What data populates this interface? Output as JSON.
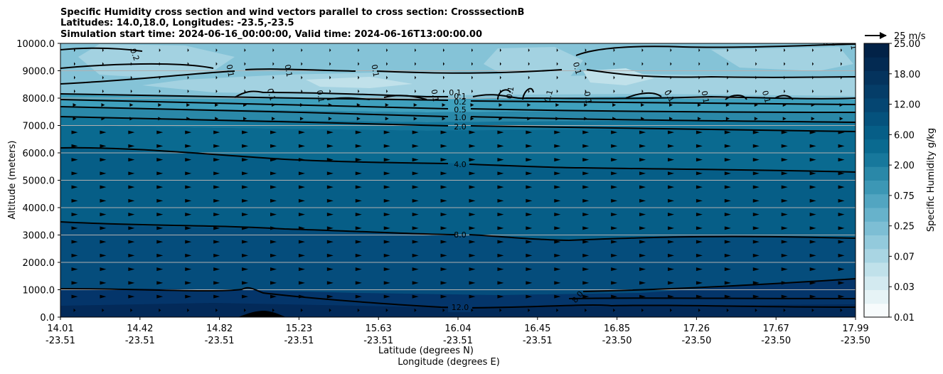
{
  "chart_data": {
    "type": "contour",
    "title_lines": [
      "Specific Humidity cross section and wind vectors parallel to cross section: CrosssectionB",
      "Latitudes: 14.0,18.0, Longitudes: -23.5,-23.5",
      "Simulation start time: 2024-06-16_00:00:00, Valid time: 2024-06-16T13:00:00.00"
    ],
    "ylabel": "Altitude (meters)",
    "xlabel_lat": "Latitude (degrees N)",
    "xlabel_lon": "Longitude (degrees E)",
    "ylim": [
      0,
      10000
    ],
    "y_ticks": [
      "0.0",
      "1000.0",
      "2000.0",
      "3000.0",
      "4000.0",
      "5000.0",
      "6000.0",
      "7000.0",
      "8000.0",
      "9000.0",
      "10000.0"
    ],
    "x_ticks": [
      {
        "lat": "14.01",
        "lon": "-23.51"
      },
      {
        "lat": "14.42",
        "lon": "-23.51"
      },
      {
        "lat": "14.82",
        "lon": "-23.51"
      },
      {
        "lat": "15.23",
        "lon": "-23.51"
      },
      {
        "lat": "15.63",
        "lon": "-23.51"
      },
      {
        "lat": "16.04",
        "lon": "-23.51"
      },
      {
        "lat": "16.45",
        "lon": "-23.51"
      },
      {
        "lat": "16.85",
        "lon": "-23.50"
      },
      {
        "lat": "17.26",
        "lon": "-23.50"
      },
      {
        "lat": "17.67",
        "lon": "-23.50"
      },
      {
        "lat": "17.99",
        "lon": "-23.50"
      }
    ],
    "colorbar": {
      "label": "Specific Humidity g/kg",
      "tick_labels": [
        "0.01",
        "0.03",
        "0.07",
        "0.25",
        "0.75",
        "2.00",
        "6.00",
        "12.00",
        "18.00",
        "25.00"
      ],
      "colors": [
        "#f7fbfc",
        "#e6f3f6",
        "#d3eaf0",
        "#c0e1ea",
        "#a9d5e3",
        "#93cadc",
        "#7dbed4",
        "#67b2cb",
        "#52a5c1",
        "#3c97b5",
        "#2a88a8",
        "#17789c",
        "#0a6a90",
        "#065e87",
        "#05527d",
        "#054672",
        "#053d68",
        "#04335d",
        "#032a52",
        "#022247"
      ]
    },
    "contour_levels": [
      {
        "label": "12.0",
        "altitude": 350
      },
      {
        "label": "8.0",
        "altitude": 3000
      },
      {
        "label": "4.0",
        "altitude": 5600
      },
      {
        "label": "2.0",
        "altitude": 7000
      },
      {
        "label": "1.0",
        "altitude": 7300
      },
      {
        "label": "0.5",
        "altitude": 7500
      },
      {
        "label": "0.2",
        "altitude": 7800
      },
      {
        "label": "0.1",
        "altitude": 8050
      }
    ],
    "upper_contour_labels": [
      "0.2",
      "0.1",
      "0.1",
      "0.1",
      "0.1",
      "0.1",
      "0.1",
      "0.1",
      "0.1",
      "0.1",
      "0.1",
      "0.1",
      "0.1",
      "0.1",
      "0.1",
      "0.1",
      "0.1",
      "8.0"
    ],
    "wind_reference": {
      "label": "25 m/s",
      "speed": 25
    }
  }
}
